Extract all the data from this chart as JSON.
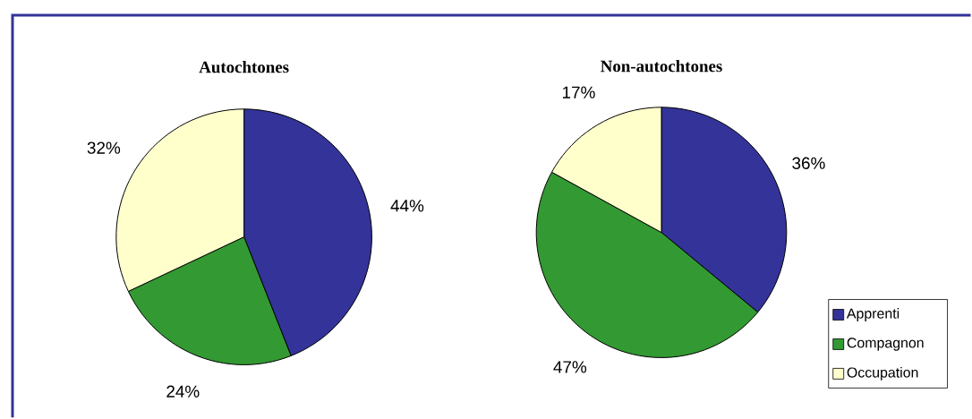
{
  "chart_data": [
    {
      "type": "pie",
      "title": "Autochtones",
      "categories": [
        null,
        null,
        null
      ],
      "values": [
        44,
        24,
        32
      ],
      "colors": [
        "#333399",
        "#339933",
        "#ffffcc"
      ],
      "value_labels": [
        "44%",
        "24%",
        "32%"
      ]
    },
    {
      "type": "pie",
      "title": "Non-autochtones",
      "categories": [
        "Apprenti",
        "Compagnon",
        "Occupation"
      ],
      "values": [
        36,
        47,
        17
      ],
      "colors": [
        "#333399",
        "#339933",
        "#ffffcc"
      ],
      "value_labels": [
        "36%",
        "47%",
        "17%"
      ],
      "legend": "bottom right"
    }
  ]
}
